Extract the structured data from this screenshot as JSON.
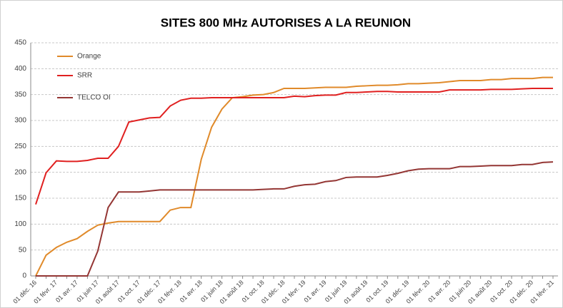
{
  "chart_data": {
    "type": "line",
    "title": "SITES 800 MHz AUTORISES A LA REUNION",
    "categories": [
      "01 déc. 16",
      null,
      "01 févr. 17",
      null,
      "01 avr. 17",
      null,
      "01 juin 17",
      null,
      "01 août 17",
      null,
      "01 oct. 17",
      null,
      "01 déc. 17",
      null,
      "01 févr. 18",
      null,
      "01 avr. 18",
      null,
      "01 juin 18",
      null,
      "01 août 18",
      null,
      "01 oct. 18",
      null,
      "01 déc. 18",
      null,
      "01 févr. 19",
      null,
      "01 avr. 19",
      null,
      "01 juin 19",
      null,
      "01 août 19",
      null,
      "01 oct. 19",
      null,
      "01 déc. 19",
      null,
      "01 févr. 20",
      null,
      "01 avr. 20",
      null,
      "01 juin 20",
      null,
      "01 août 20",
      null,
      "01 oct. 20",
      null,
      "01 déc. 20",
      null,
      "01 févr. 21"
    ],
    "series": [
      {
        "name": "Orange",
        "color": "#e08a2a",
        "values": [
          0,
          40,
          55,
          65,
          72,
          86,
          98,
          102,
          105,
          105,
          105,
          105,
          105,
          127,
          132,
          132,
          225,
          287,
          322,
          344,
          346,
          349,
          350,
          354,
          362,
          362,
          362,
          363,
          364,
          364,
          364,
          366,
          367,
          368,
          368,
          369,
          371,
          371,
          372,
          373,
          375,
          377,
          377,
          377,
          379,
          379,
          381,
          381,
          381,
          383,
          383
        ]
      },
      {
        "name": "SRR",
        "color": "#e02020",
        "values": [
          138,
          199,
          222,
          221,
          221,
          223,
          227,
          227,
          250,
          297,
          301,
          305,
          306,
          328,
          339,
          343,
          343,
          344,
          344,
          344,
          344,
          344,
          344,
          344,
          344,
          347,
          346,
          348,
          349,
          349,
          354,
          354,
          355,
          356,
          356,
          355,
          355,
          355,
          355,
          355,
          359,
          359,
          359,
          359,
          360,
          360,
          360,
          361,
          362,
          362,
          362
        ]
      },
      {
        "name": "TELCO OI",
        "color": "#943634",
        "values": [
          0,
          0,
          0,
          0,
          0,
          0,
          48,
          132,
          162,
          162,
          162,
          164,
          166,
          166,
          166,
          166,
          166,
          166,
          166,
          166,
          166,
          166,
          167,
          168,
          168,
          173,
          176,
          177,
          182,
          184,
          190,
          191,
          191,
          191,
          194,
          198,
          203,
          206,
          207,
          207,
          207,
          211,
          211,
          212,
          213,
          213,
          213,
          215,
          215,
          219,
          220
        ]
      }
    ],
    "ylim": [
      0,
      450
    ],
    "yticks": [
      0,
      50,
      100,
      150,
      200,
      250,
      300,
      350,
      400,
      450
    ],
    "grid": true,
    "legend": "upper-left"
  }
}
